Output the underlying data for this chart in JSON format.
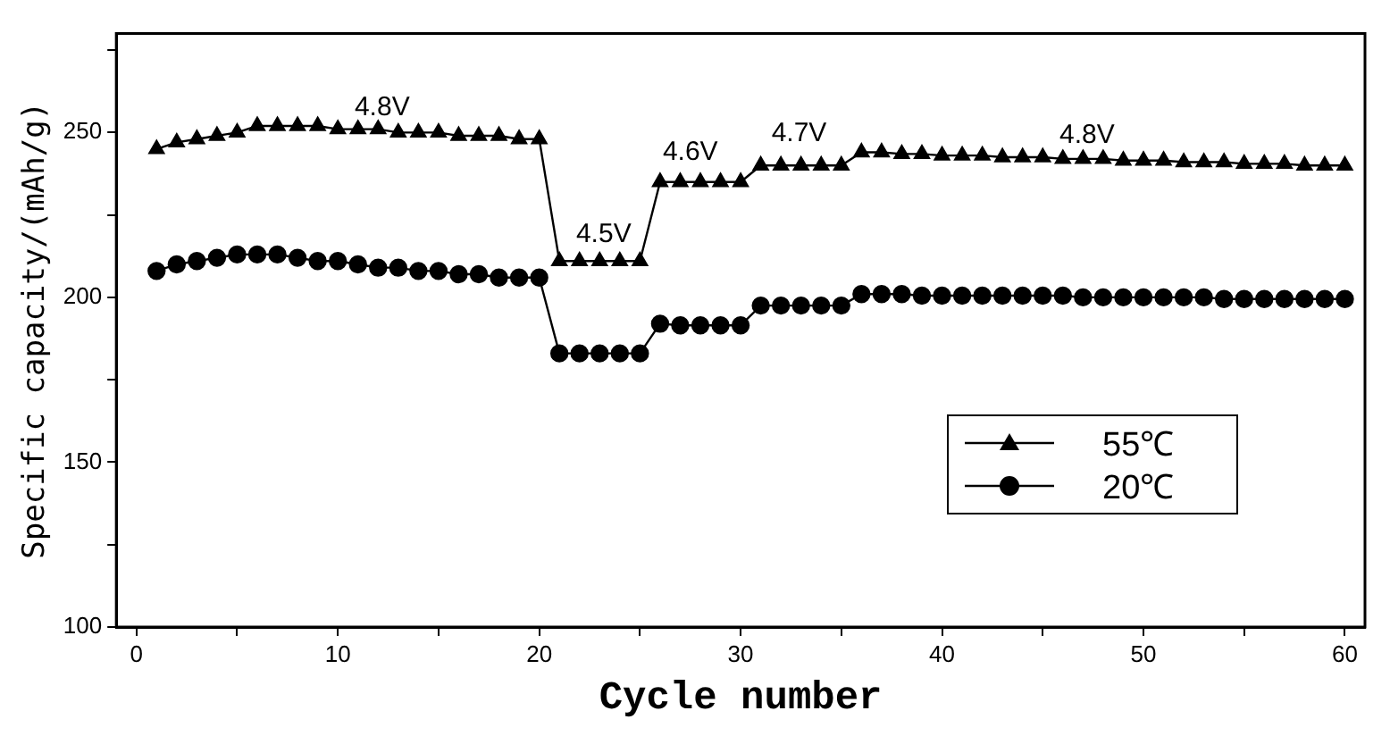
{
  "chart_data": {
    "type": "line",
    "xlabel": "Cycle number",
    "ylabel": "Specific capacity/(mAh/g)",
    "x": [
      1,
      2,
      3,
      4,
      5,
      6,
      7,
      8,
      9,
      10,
      11,
      12,
      13,
      14,
      15,
      16,
      17,
      18,
      19,
      20,
      21,
      22,
      23,
      24,
      25,
      26,
      27,
      28,
      29,
      30,
      31,
      32,
      33,
      34,
      35,
      36,
      37,
      38,
      39,
      40,
      41,
      42,
      43,
      44,
      45,
      46,
      47,
      48,
      49,
      50,
      51,
      52,
      53,
      54,
      55,
      56,
      57,
      58,
      59,
      60
    ],
    "series": [
      {
        "name": "55℃",
        "color": "#000000",
        "marker": "triangle",
        "values": [
          245,
          247,
          248,
          249,
          250,
          252,
          252,
          252,
          252,
          251,
          251,
          251,
          250,
          250,
          250,
          249,
          249,
          249,
          248,
          248,
          211,
          211,
          211,
          211,
          211,
          235,
          235,
          235,
          235,
          235,
          240,
          240,
          240,
          240,
          240,
          244,
          244,
          243.5,
          243.5,
          243,
          243,
          243,
          242.5,
          242.5,
          242.5,
          242,
          242,
          242,
          241.5,
          241.5,
          241.5,
          241,
          241,
          241,
          240.5,
          240.5,
          240.5,
          240,
          240,
          240
        ]
      },
      {
        "name": "20℃",
        "color": "#000000",
        "marker": "circle",
        "values": [
          208,
          210,
          211,
          212,
          213,
          213,
          213,
          212,
          211,
          211,
          210,
          209,
          209,
          208,
          208,
          207,
          207,
          206,
          206,
          206,
          183,
          183,
          183,
          183,
          183,
          192,
          191.5,
          191.5,
          191.5,
          191.5,
          197.5,
          197.5,
          197.5,
          197.5,
          197.5,
          201,
          201,
          201,
          200.5,
          200.5,
          200.5,
          200.5,
          200.5,
          200.5,
          200.5,
          200.5,
          200,
          200,
          200,
          200,
          200,
          200,
          200,
          199.5,
          199.5,
          199.5,
          199.5,
          199.5,
          199.5,
          199.5
        ]
      }
    ],
    "xlim": [
      -1,
      61
    ],
    "xticks": [
      0,
      {
        "value": 5,
        "label": null
      },
      10,
      {
        "value": 15,
        "label": null
      },
      20,
      {
        "value": 25,
        "label": null
      },
      30,
      {
        "value": 35,
        "label": null
      },
      40,
      {
        "value": 45,
        "label": null
      },
      50,
      {
        "value": 55,
        "label": null
      },
      60
    ],
    "ylim": [
      100,
      280
    ],
    "yticks": [
      100,
      {
        "value": 125,
        "label": null
      },
      150,
      {
        "value": 175,
        "label": null
      },
      200,
      {
        "value": 225,
        "label": null
      },
      250,
      {
        "value": 275,
        "label": null
      }
    ],
    "legend": "right",
    "line_style": "solid",
    "annotations": [
      "4.8V",
      "4.5V",
      "4.6V",
      "4.7V",
      "4.8V"
    ]
  }
}
